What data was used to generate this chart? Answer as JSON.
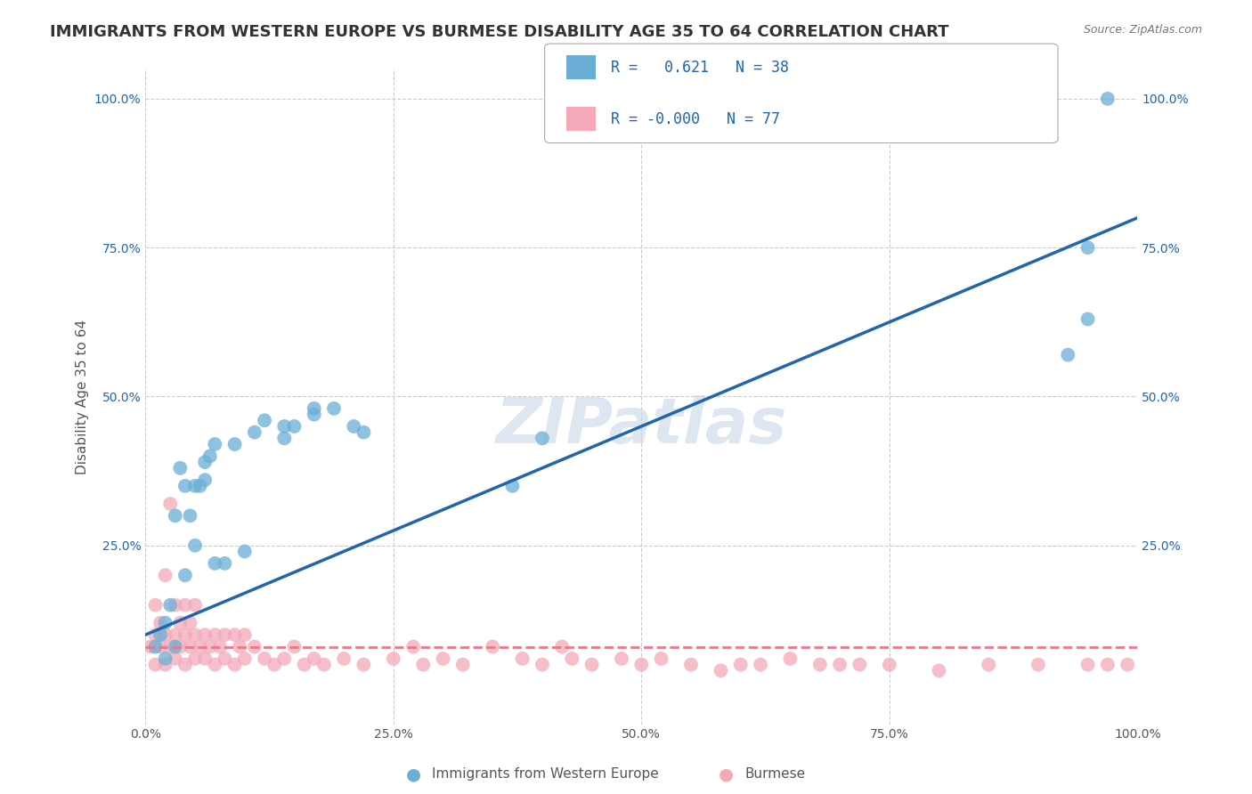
{
  "title": "IMMIGRANTS FROM WESTERN EUROPE VS BURMESE DISABILITY AGE 35 TO 64 CORRELATION CHART",
  "source": "Source: ZipAtlas.com",
  "xlabel": "",
  "ylabel": "Disability Age 35 to 64",
  "xlim": [
    0,
    100
  ],
  "ylim": [
    -5,
    105
  ],
  "xtick_labels": [
    "0.0%",
    "25.0%",
    "50.0%",
    "75.0%",
    "100.0%"
  ],
  "xtick_vals": [
    0,
    25,
    50,
    75,
    100
  ],
  "ytick_labels": [
    "25.0%",
    "50.0%",
    "75.0%",
    "100.0%"
  ],
  "ytick_vals": [
    25,
    50,
    75,
    100
  ],
  "r_blue": "0.621",
  "n_blue": "38",
  "r_pink": "-0.000",
  "n_pink": "77",
  "blue_color": "#6aaed6",
  "pink_color": "#f4a8b8",
  "blue_line_color": "#2166ac",
  "pink_line_color": "#e8798a",
  "watermark": "ZIPatlas",
  "watermark_color": "#c8d8e8",
  "legend_label_blue": "Immigrants from Western Europe",
  "legend_label_pink": "Burmese",
  "blue_scatter_x": [
    1,
    1.5,
    2,
    2.5,
    3,
    3,
    3.5,
    4,
    4,
    4.5,
    5,
    5,
    5.5,
    6,
    6,
    6.5,
    7,
    7,
    8,
    9,
    10,
    11,
    12,
    14,
    14,
    15,
    17,
    17,
    19,
    21,
    22,
    37,
    40,
    93,
    95,
    95,
    97,
    2
  ],
  "blue_scatter_y": [
    8,
    10,
    6,
    15,
    8,
    30,
    38,
    20,
    35,
    30,
    25,
    35,
    35,
    36,
    39,
    40,
    42,
    22,
    22,
    42,
    24,
    44,
    46,
    45,
    43,
    45,
    47,
    48,
    48,
    45,
    44,
    35,
    43,
    57,
    63,
    75,
    100,
    12
  ],
  "pink_scatter_x": [
    0.5,
    1,
    1,
    1,
    1.5,
    1.5,
    2,
    2,
    2,
    2.5,
    2.5,
    3,
    3,
    3,
    3.5,
    3.5,
    4,
    4,
    4,
    4.5,
    4.5,
    5,
    5,
    5,
    5.5,
    6,
    6,
    6.5,
    7,
    7,
    7.5,
    8,
    8,
    9,
    9,
    9.5,
    10,
    10,
    11,
    12,
    13,
    14,
    15,
    16,
    17,
    18,
    20,
    22,
    25,
    27,
    28,
    30,
    32,
    35,
    38,
    40,
    42,
    43,
    45,
    48,
    50,
    52,
    55,
    58,
    60,
    62,
    65,
    68,
    70,
    72,
    75,
    80,
    85,
    90,
    95,
    97,
    99
  ],
  "pink_scatter_y": [
    8,
    5,
    10,
    15,
    8,
    12,
    5,
    10,
    20,
    8,
    32,
    6,
    10,
    15,
    8,
    12,
    5,
    10,
    15,
    8,
    12,
    6,
    10,
    15,
    8,
    6,
    10,
    8,
    5,
    10,
    8,
    6,
    10,
    5,
    10,
    8,
    6,
    10,
    8,
    6,
    5,
    6,
    8,
    5,
    6,
    5,
    6,
    5,
    6,
    8,
    5,
    6,
    5,
    8,
    6,
    5,
    8,
    6,
    5,
    6,
    5,
    6,
    5,
    4,
    5,
    5,
    6,
    5,
    5,
    5,
    5,
    4,
    5,
    5,
    5,
    5,
    5
  ],
  "blue_line_x": [
    0,
    100
  ],
  "blue_line_y": [
    10,
    80
  ],
  "pink_line_x": [
    0,
    100
  ],
  "pink_line_y": [
    8,
    8
  ],
  "background_color": "#ffffff",
  "grid_color": "#cccccc",
  "title_fontsize": 13,
  "axis_label_fontsize": 11,
  "tick_fontsize": 10,
  "legend_fontsize": 11
}
